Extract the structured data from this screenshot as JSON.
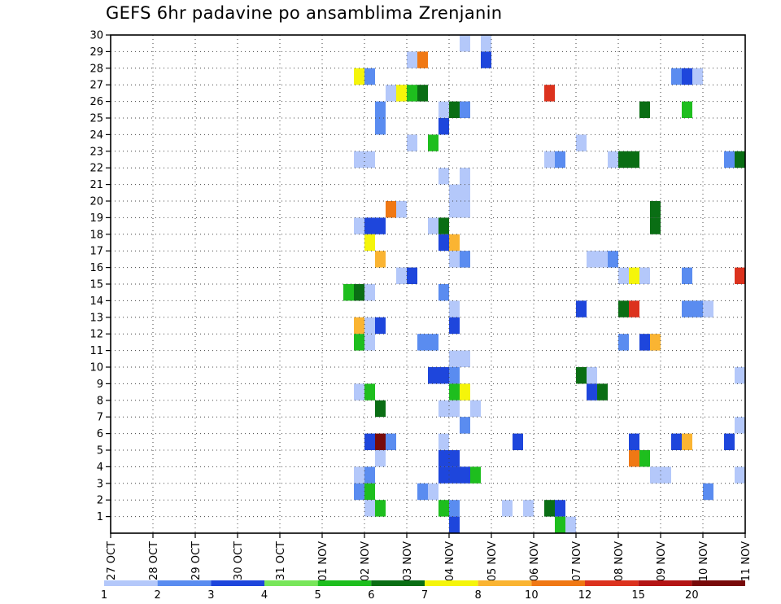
{
  "chart_data": {
    "type": "heatmap",
    "title": "GEFS 6hr padavine po ansamblima Zrenjanin",
    "xlabel": "",
    "ylabel": "",
    "x_tick_labels": [
      "27 OCT",
      "28 OCT",
      "29 OCT",
      "30 OCT",
      "31 OCT",
      "01 NOV",
      "02 NOV",
      "03 NOV",
      "04 NOV",
      "05 NOV",
      "06 NOV",
      "07 NOV",
      "08 NOV",
      "09 NOV",
      "10 NOV",
      "11 NOV"
    ],
    "y_tick_labels": [
      "1",
      "2",
      "3",
      "4",
      "5",
      "6",
      "7",
      "8",
      "9",
      "10",
      "11",
      "12",
      "13",
      "14",
      "15",
      "16",
      "17",
      "18",
      "19",
      "20",
      "21",
      "22",
      "23",
      "24",
      "25",
      "26",
      "27",
      "28",
      "29",
      "30"
    ],
    "xlim_days": [
      0,
      15
    ],
    "ylim": [
      0,
      30
    ],
    "grid": true,
    "time_step_hours": 6,
    "colorbar": {
      "levels": [
        "1",
        "2",
        "3",
        "4",
        "5",
        "6",
        "7",
        "8",
        "10",
        "12",
        "15",
        "20"
      ],
      "colors": [
        "#b4c8fa",
        "#5a8cf0",
        "#1e46dc",
        "#78e65a",
        "#1ebe1e",
        "#0a6e14",
        "#f5f50a",
        "#fab432",
        "#f07814",
        "#dc321e",
        "#b41414",
        "#780a0a"
      ]
    },
    "cells": [
      {
        "member": 30,
        "t": 8.25,
        "v": 1
      },
      {
        "member": 30,
        "t": 8.75,
        "v": 1
      },
      {
        "member": 29,
        "t": 7.0,
        "v": 1
      },
      {
        "member": 29,
        "t": 7.25,
        "v": 10
      },
      {
        "member": 29,
        "t": 8.75,
        "v": 3
      },
      {
        "member": 28,
        "t": 5.75,
        "v": 7
      },
      {
        "member": 28,
        "t": 6.0,
        "v": 2
      },
      {
        "member": 28,
        "t": 13.25,
        "v": 2
      },
      {
        "member": 28,
        "t": 13.5,
        "v": 3
      },
      {
        "member": 28,
        "t": 13.75,
        "v": 1
      },
      {
        "member": 27,
        "t": 6.5,
        "v": 1
      },
      {
        "member": 27,
        "t": 6.75,
        "v": 7
      },
      {
        "member": 27,
        "t": 7.0,
        "v": 5
      },
      {
        "member": 27,
        "t": 7.25,
        "v": 6
      },
      {
        "member": 27,
        "t": 10.25,
        "v": 12
      },
      {
        "member": 26,
        "t": 6.25,
        "v": 2
      },
      {
        "member": 26,
        "t": 7.75,
        "v": 1
      },
      {
        "member": 26,
        "t": 8.0,
        "v": 6
      },
      {
        "member": 26,
        "t": 8.25,
        "v": 2
      },
      {
        "member": 26,
        "t": 12.5,
        "v": 6
      },
      {
        "member": 26,
        "t": 13.5,
        "v": 5
      },
      {
        "member": 25,
        "t": 6.25,
        "v": 2
      },
      {
        "member": 25,
        "t": 7.75,
        "v": 3
      },
      {
        "member": 24,
        "t": 7.0,
        "v": 1
      },
      {
        "member": 24,
        "t": 7.5,
        "v": 5
      },
      {
        "member": 24,
        "t": 11.0,
        "v": 1
      },
      {
        "member": 23,
        "t": 5.75,
        "v": 1
      },
      {
        "member": 23,
        "t": 6.0,
        "v": 1
      },
      {
        "member": 23,
        "t": 10.25,
        "v": 1
      },
      {
        "member": 23,
        "t": 10.5,
        "v": 2
      },
      {
        "member": 23,
        "t": 11.75,
        "v": 1
      },
      {
        "member": 23,
        "t": 12.0,
        "v": 6
      },
      {
        "member": 23,
        "t": 12.25,
        "v": 6
      },
      {
        "member": 23,
        "t": 14.5,
        "v": 2
      },
      {
        "member": 23,
        "t": 14.75,
        "v": 6
      },
      {
        "member": 22,
        "t": 7.75,
        "v": 1
      },
      {
        "member": 22,
        "t": 8.25,
        "v": 1
      },
      {
        "member": 21,
        "t": 8.0,
        "v": 1
      },
      {
        "member": 21,
        "t": 8.25,
        "v": 1
      },
      {
        "member": 20,
        "t": 6.5,
        "v": 10
      },
      {
        "member": 20,
        "t": 6.75,
        "v": 1
      },
      {
        "member": 20,
        "t": 8.0,
        "v": 1
      },
      {
        "member": 20,
        "t": 8.25,
        "v": 1
      },
      {
        "member": 20,
        "t": 12.75,
        "v": 6
      },
      {
        "member": 19,
        "t": 5.75,
        "v": 1
      },
      {
        "member": 19,
        "t": 6.0,
        "v": 3
      },
      {
        "member": 19,
        "t": 6.25,
        "v": 3
      },
      {
        "member": 19,
        "t": 7.5,
        "v": 1
      },
      {
        "member": 19,
        "t": 7.75,
        "v": 6
      },
      {
        "member": 19,
        "t": 12.75,
        "v": 6
      },
      {
        "member": 18,
        "t": 6.0,
        "v": 7
      },
      {
        "member": 18,
        "t": 7.75,
        "v": 3
      },
      {
        "member": 18,
        "t": 8.0,
        "v": 8
      },
      {
        "member": 17,
        "t": 6.25,
        "v": 8
      },
      {
        "member": 17,
        "t": 8.0,
        "v": 1
      },
      {
        "member": 17,
        "t": 8.25,
        "v": 2
      },
      {
        "member": 17,
        "t": 11.25,
        "v": 1
      },
      {
        "member": 17,
        "t": 11.5,
        "v": 1
      },
      {
        "member": 17,
        "t": 11.75,
        "v": 2
      },
      {
        "member": 16,
        "t": 6.75,
        "v": 1
      },
      {
        "member": 16,
        "t": 7.0,
        "v": 3
      },
      {
        "member": 16,
        "t": 12.0,
        "v": 1
      },
      {
        "member": 16,
        "t": 12.25,
        "v": 7
      },
      {
        "member": 16,
        "t": 12.5,
        "v": 1
      },
      {
        "member": 16,
        "t": 13.5,
        "v": 2
      },
      {
        "member": 16,
        "t": 14.75,
        "v": 12
      },
      {
        "member": 15,
        "t": 5.5,
        "v": 5
      },
      {
        "member": 15,
        "t": 5.75,
        "v": 6
      },
      {
        "member": 15,
        "t": 6.0,
        "v": 1
      },
      {
        "member": 15,
        "t": 7.75,
        "v": 2
      },
      {
        "member": 14,
        "t": 8.0,
        "v": 1
      },
      {
        "member": 14,
        "t": 11.0,
        "v": 3
      },
      {
        "member": 14,
        "t": 12.0,
        "v": 6
      },
      {
        "member": 14,
        "t": 12.25,
        "v": 12
      },
      {
        "member": 14,
        "t": 13.5,
        "v": 2
      },
      {
        "member": 14,
        "t": 13.75,
        "v": 2
      },
      {
        "member": 14,
        "t": 14.0,
        "v": 1
      },
      {
        "member": 13,
        "t": 5.75,
        "v": 8
      },
      {
        "member": 13,
        "t": 6.0,
        "v": 1
      },
      {
        "member": 13,
        "t": 6.25,
        "v": 3
      },
      {
        "member": 13,
        "t": 8.0,
        "v": 3
      },
      {
        "member": 12,
        "t": 5.75,
        "v": 5
      },
      {
        "member": 12,
        "t": 6.0,
        "v": 1
      },
      {
        "member": 12,
        "t": 7.25,
        "v": 2
      },
      {
        "member": 12,
        "t": 7.5,
        "v": 2
      },
      {
        "member": 12,
        "t": 12.0,
        "v": 2
      },
      {
        "member": 12,
        "t": 12.5,
        "v": 3
      },
      {
        "member": 12,
        "t": 12.75,
        "v": 8
      },
      {
        "member": 11,
        "t": 8.0,
        "v": 1
      },
      {
        "member": 11,
        "t": 8.25,
        "v": 1
      },
      {
        "member": 10,
        "t": 7.5,
        "v": 3
      },
      {
        "member": 10,
        "t": 7.75,
        "v": 3
      },
      {
        "member": 10,
        "t": 8.0,
        "v": 2
      },
      {
        "member": 10,
        "t": 11.0,
        "v": 6
      },
      {
        "member": 10,
        "t": 11.25,
        "v": 1
      },
      {
        "member": 10,
        "t": 14.75,
        "v": 1
      },
      {
        "member": 9,
        "t": 5.75,
        "v": 1
      },
      {
        "member": 9,
        "t": 6.0,
        "v": 5
      },
      {
        "member": 9,
        "t": 8.0,
        "v": 5
      },
      {
        "member": 9,
        "t": 8.25,
        "v": 7
      },
      {
        "member": 9,
        "t": 11.25,
        "v": 3
      },
      {
        "member": 9,
        "t": 11.5,
        "v": 6
      },
      {
        "member": 8,
        "t": 6.25,
        "v": 6
      },
      {
        "member": 8,
        "t": 7.75,
        "v": 1
      },
      {
        "member": 8,
        "t": 8.0,
        "v": 1
      },
      {
        "member": 8,
        "t": 8.5,
        "v": 1
      },
      {
        "member": 7,
        "t": 8.25,
        "v": 2
      },
      {
        "member": 7,
        "t": 14.75,
        "v": 1
      },
      {
        "member": 6,
        "t": 6.0,
        "v": 3
      },
      {
        "member": 6,
        "t": 6.25,
        "v": 20
      },
      {
        "member": 6,
        "t": 6.5,
        "v": 2
      },
      {
        "member": 6,
        "t": 7.75,
        "v": 1
      },
      {
        "member": 6,
        "t": 9.5,
        "v": 3
      },
      {
        "member": 6,
        "t": 12.25,
        "v": 3
      },
      {
        "member": 6,
        "t": 13.25,
        "v": 3
      },
      {
        "member": 6,
        "t": 13.5,
        "v": 8
      },
      {
        "member": 6,
        "t": 14.5,
        "v": 3
      },
      {
        "member": 5,
        "t": 6.25,
        "v": 1
      },
      {
        "member": 5,
        "t": 7.75,
        "v": 3
      },
      {
        "member": 5,
        "t": 8.0,
        "v": 3
      },
      {
        "member": 5,
        "t": 12.25,
        "v": 10
      },
      {
        "member": 5,
        "t": 12.5,
        "v": 5
      },
      {
        "member": 4,
        "t": 5.75,
        "v": 1
      },
      {
        "member": 4,
        "t": 6.0,
        "v": 2
      },
      {
        "member": 4,
        "t": 7.75,
        "v": 3
      },
      {
        "member": 4,
        "t": 8.0,
        "v": 3
      },
      {
        "member": 4,
        "t": 8.25,
        "v": 3
      },
      {
        "member": 4,
        "t": 8.5,
        "v": 5
      },
      {
        "member": 4,
        "t": 12.75,
        "v": 1
      },
      {
        "member": 4,
        "t": 13.0,
        "v": 1
      },
      {
        "member": 4,
        "t": 14.75,
        "v": 1
      },
      {
        "member": 3,
        "t": 5.75,
        "v": 2
      },
      {
        "member": 3,
        "t": 6.0,
        "v": 5
      },
      {
        "member": 3,
        "t": 7.25,
        "v": 2
      },
      {
        "member": 3,
        "t": 7.5,
        "v": 1
      },
      {
        "member": 3,
        "t": 14.0,
        "v": 2
      },
      {
        "member": 2,
        "t": 6.0,
        "v": 1
      },
      {
        "member": 2,
        "t": 6.25,
        "v": 5
      },
      {
        "member": 2,
        "t": 7.75,
        "v": 5
      },
      {
        "member": 2,
        "t": 8.0,
        "v": 2
      },
      {
        "member": 2,
        "t": 9.25,
        "v": 1
      },
      {
        "member": 2,
        "t": 9.75,
        "v": 1
      },
      {
        "member": 2,
        "t": 10.25,
        "v": 6
      },
      {
        "member": 2,
        "t": 10.5,
        "v": 3
      },
      {
        "member": 1,
        "t": 8.0,
        "v": 3
      },
      {
        "member": 1,
        "t": 10.5,
        "v": 5
      },
      {
        "member": 1,
        "t": 10.75,
        "v": 1
      }
    ]
  }
}
